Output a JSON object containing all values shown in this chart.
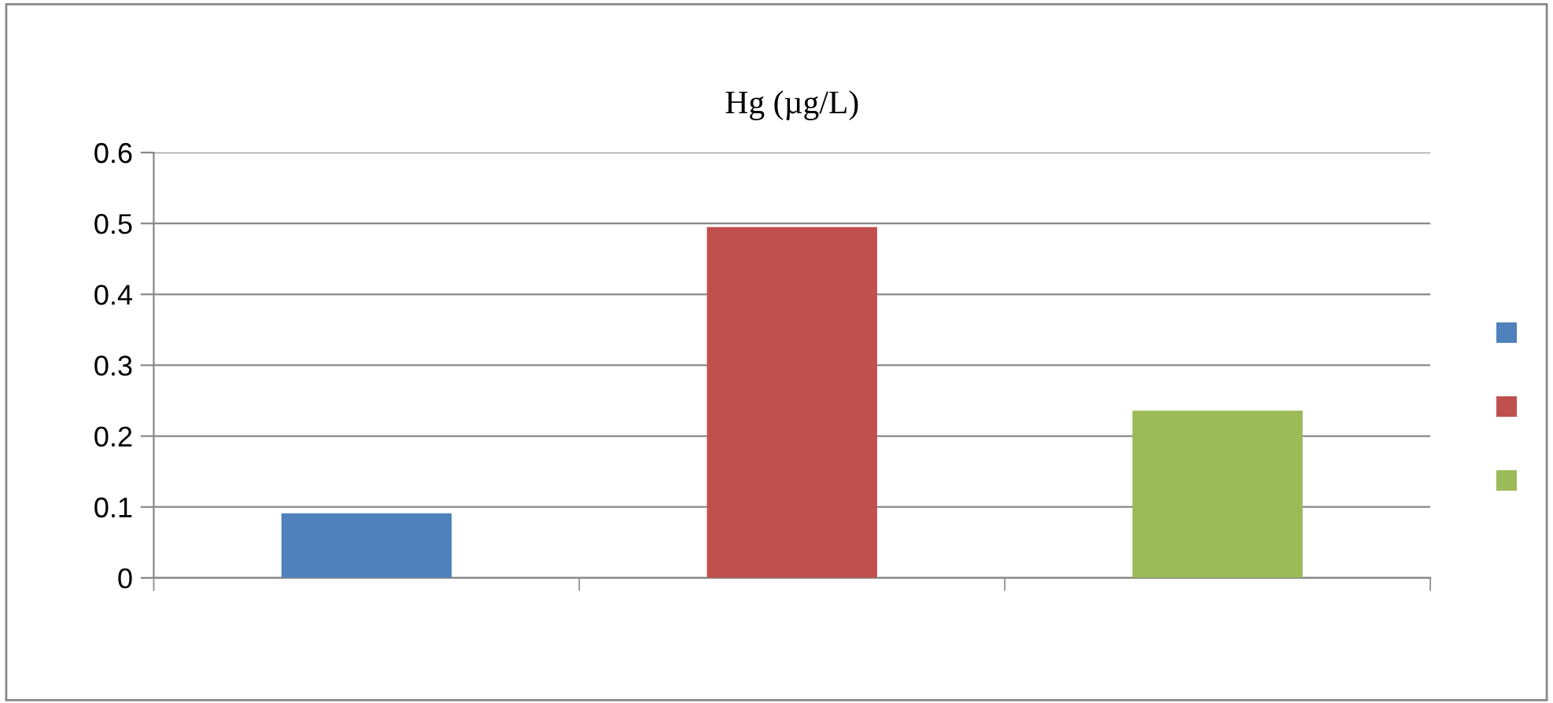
{
  "chart_data": {
    "type": "bar",
    "title": "Hg (µg/L)",
    "categories": [
      null,
      null,
      null
    ],
    "values": [
      0.091,
      0.495,
      0.236
    ],
    "colors": [
      "#4f81bd",
      "#c0504d",
      "#9bbb59"
    ],
    "ylim": [
      0,
      0.6
    ],
    "yticks": [
      0,
      0.1,
      0.2,
      0.3,
      0.4,
      0.5,
      0.6
    ],
    "grid": "y"
  }
}
